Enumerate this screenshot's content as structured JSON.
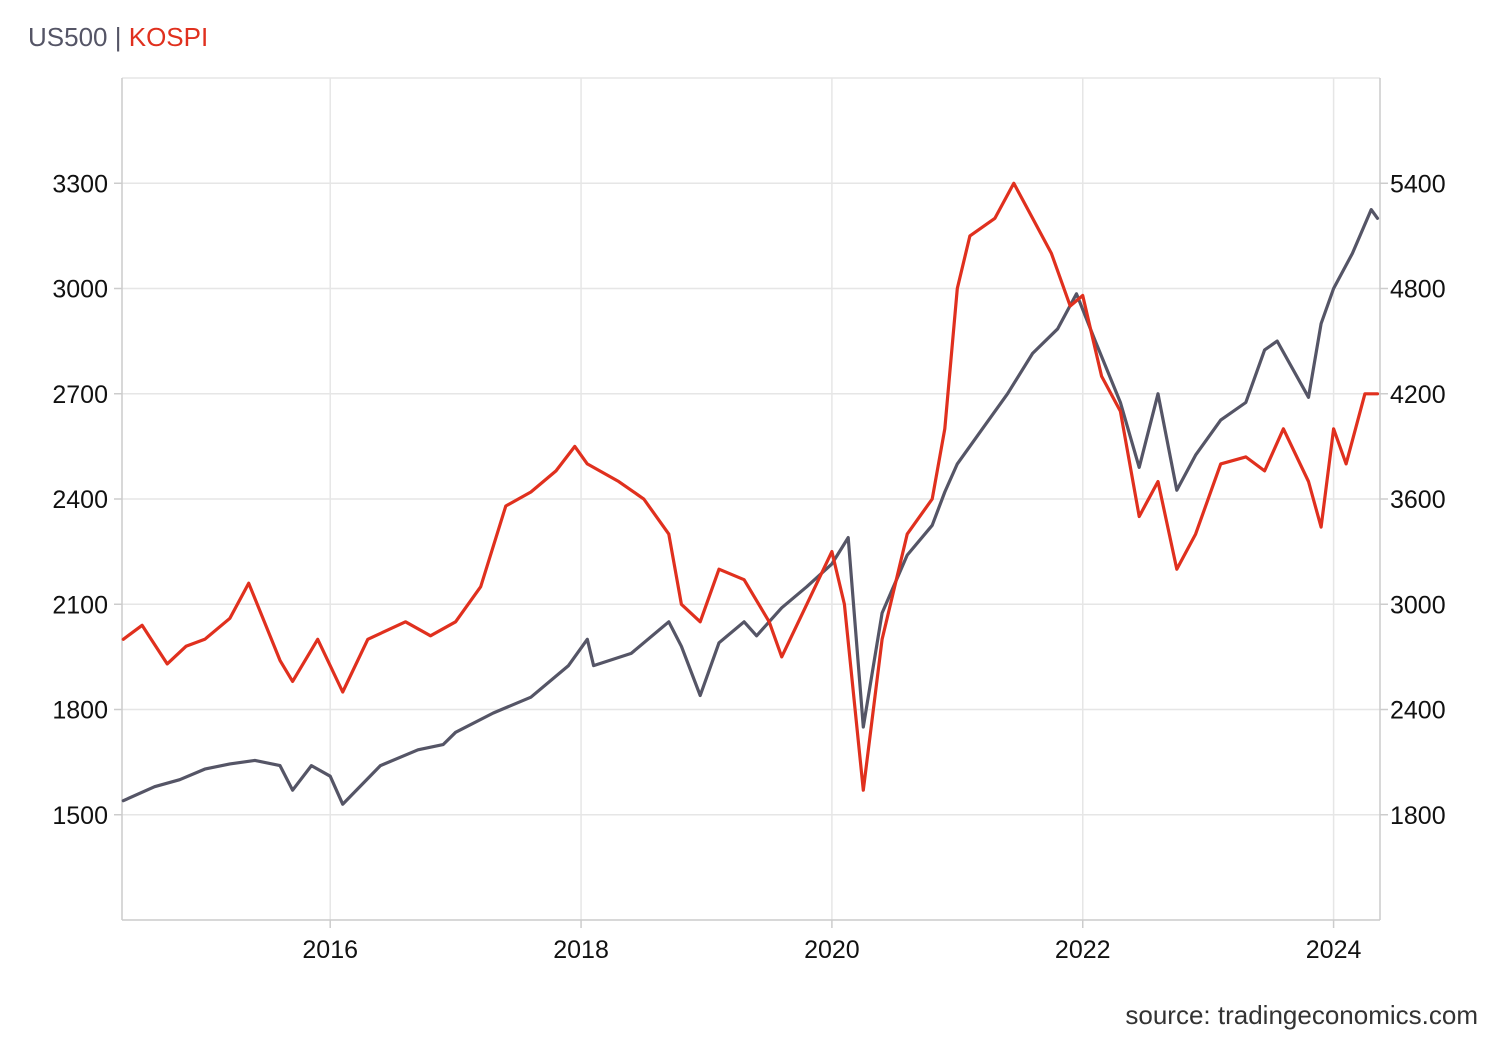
{
  "legend": {
    "series_a": "US500",
    "separator": "|",
    "series_b": "KOSPI"
  },
  "source": "source: tradingeconomics.com",
  "colors": {
    "us500": "#555566",
    "kospi": "#e0301e",
    "grid": "#e6e6e6",
    "axis": "#cccccc"
  },
  "chart_data": {
    "type": "line",
    "title": "",
    "xlabel": "",
    "ylabel": "",
    "x_ticks": [
      "2016",
      "2018",
      "2020",
      "2022",
      "2024"
    ],
    "x_range": [
      2014.34,
      2024.37
    ],
    "grid": true,
    "legend_position": "top-left",
    "axes": {
      "left": {
        "series": "KOSPI",
        "range": [
          1200,
          3600
        ],
        "ticks": [
          1500,
          1800,
          2100,
          2400,
          2700,
          3000,
          3300
        ]
      },
      "right": {
        "series": "US500",
        "range": [
          1200,
          6000
        ],
        "ticks": [
          1800,
          2400,
          3000,
          3600,
          4200,
          4800,
          5400
        ]
      }
    },
    "series": [
      {
        "name": "US500",
        "axis": "right",
        "x": [
          2014.35,
          2014.6,
          2014.8,
          2015.0,
          2015.2,
          2015.4,
          2015.6,
          2015.7,
          2015.85,
          2016.0,
          2016.1,
          2016.4,
          2016.7,
          2016.9,
          2017.0,
          2017.3,
          2017.6,
          2017.9,
          2018.05,
          2018.1,
          2018.4,
          2018.7,
          2018.8,
          2018.95,
          2019.1,
          2019.3,
          2019.4,
          2019.6,
          2019.8,
          2020.0,
          2020.13,
          2020.25,
          2020.4,
          2020.6,
          2020.8,
          2020.9,
          2021.0,
          2021.2,
          2021.4,
          2021.6,
          2021.8,
          2021.95,
          2022.1,
          2022.3,
          2022.45,
          2022.6,
          2022.75,
          2022.9,
          2023.1,
          2023.3,
          2023.45,
          2023.55,
          2023.8,
          2023.9,
          2024.0,
          2024.15,
          2024.3,
          2024.35
        ],
        "y": [
          1880,
          1960,
          2000,
          2060,
          2090,
          2110,
          2080,
          1940,
          2080,
          2020,
          1860,
          2080,
          2170,
          2200,
          2270,
          2380,
          2470,
          2650,
          2800,
          2650,
          2720,
          2900,
          2760,
          2480,
          2780,
          2900,
          2820,
          2980,
          3100,
          3230,
          3380,
          2300,
          2950,
          3280,
          3450,
          3640,
          3800,
          4000,
          4200,
          4430,
          4570,
          4770,
          4500,
          4150,
          3780,
          4200,
          3650,
          3850,
          4050,
          4150,
          4450,
          4500,
          4180,
          4600,
          4800,
          5000,
          5250,
          5200
        ]
      },
      {
        "name": "KOSPI",
        "axis": "left",
        "x": [
          2014.35,
          2014.5,
          2014.7,
          2014.85,
          2015.0,
          2015.2,
          2015.35,
          2015.6,
          2015.7,
          2015.9,
          2016.1,
          2016.3,
          2016.6,
          2016.8,
          2017.0,
          2017.2,
          2017.4,
          2017.6,
          2017.8,
          2017.95,
          2018.05,
          2018.3,
          2018.5,
          2018.7,
          2018.8,
          2018.95,
          2019.1,
          2019.3,
          2019.5,
          2019.6,
          2019.8,
          2020.0,
          2020.1,
          2020.25,
          2020.4,
          2020.6,
          2020.8,
          2020.9,
          2021.0,
          2021.1,
          2021.3,
          2021.45,
          2021.6,
          2021.75,
          2021.9,
          2022.0,
          2022.15,
          2022.3,
          2022.45,
          2022.6,
          2022.75,
          2022.9,
          2023.1,
          2023.3,
          2023.45,
          2023.6,
          2023.8,
          2023.9,
          2024.0,
          2024.1,
          2024.25,
          2024.35
        ],
        "y": [
          2000,
          2040,
          1930,
          1980,
          2000,
          2060,
          2160,
          1940,
          1880,
          2000,
          1850,
          2000,
          2050,
          2010,
          2050,
          2150,
          2380,
          2420,
          2480,
          2550,
          2500,
          2450,
          2400,
          2300,
          2100,
          2050,
          2200,
          2170,
          2050,
          1950,
          2100,
          2250,
          2100,
          1570,
          2000,
          2300,
          2400,
          2600,
          3000,
          3150,
          3200,
          3300,
          3200,
          3100,
          2950,
          2980,
          2750,
          2650,
          2350,
          2450,
          2200,
          2300,
          2500,
          2520,
          2480,
          2600,
          2450,
          2320,
          2600,
          2500,
          2700,
          2700
        ]
      }
    ]
  }
}
